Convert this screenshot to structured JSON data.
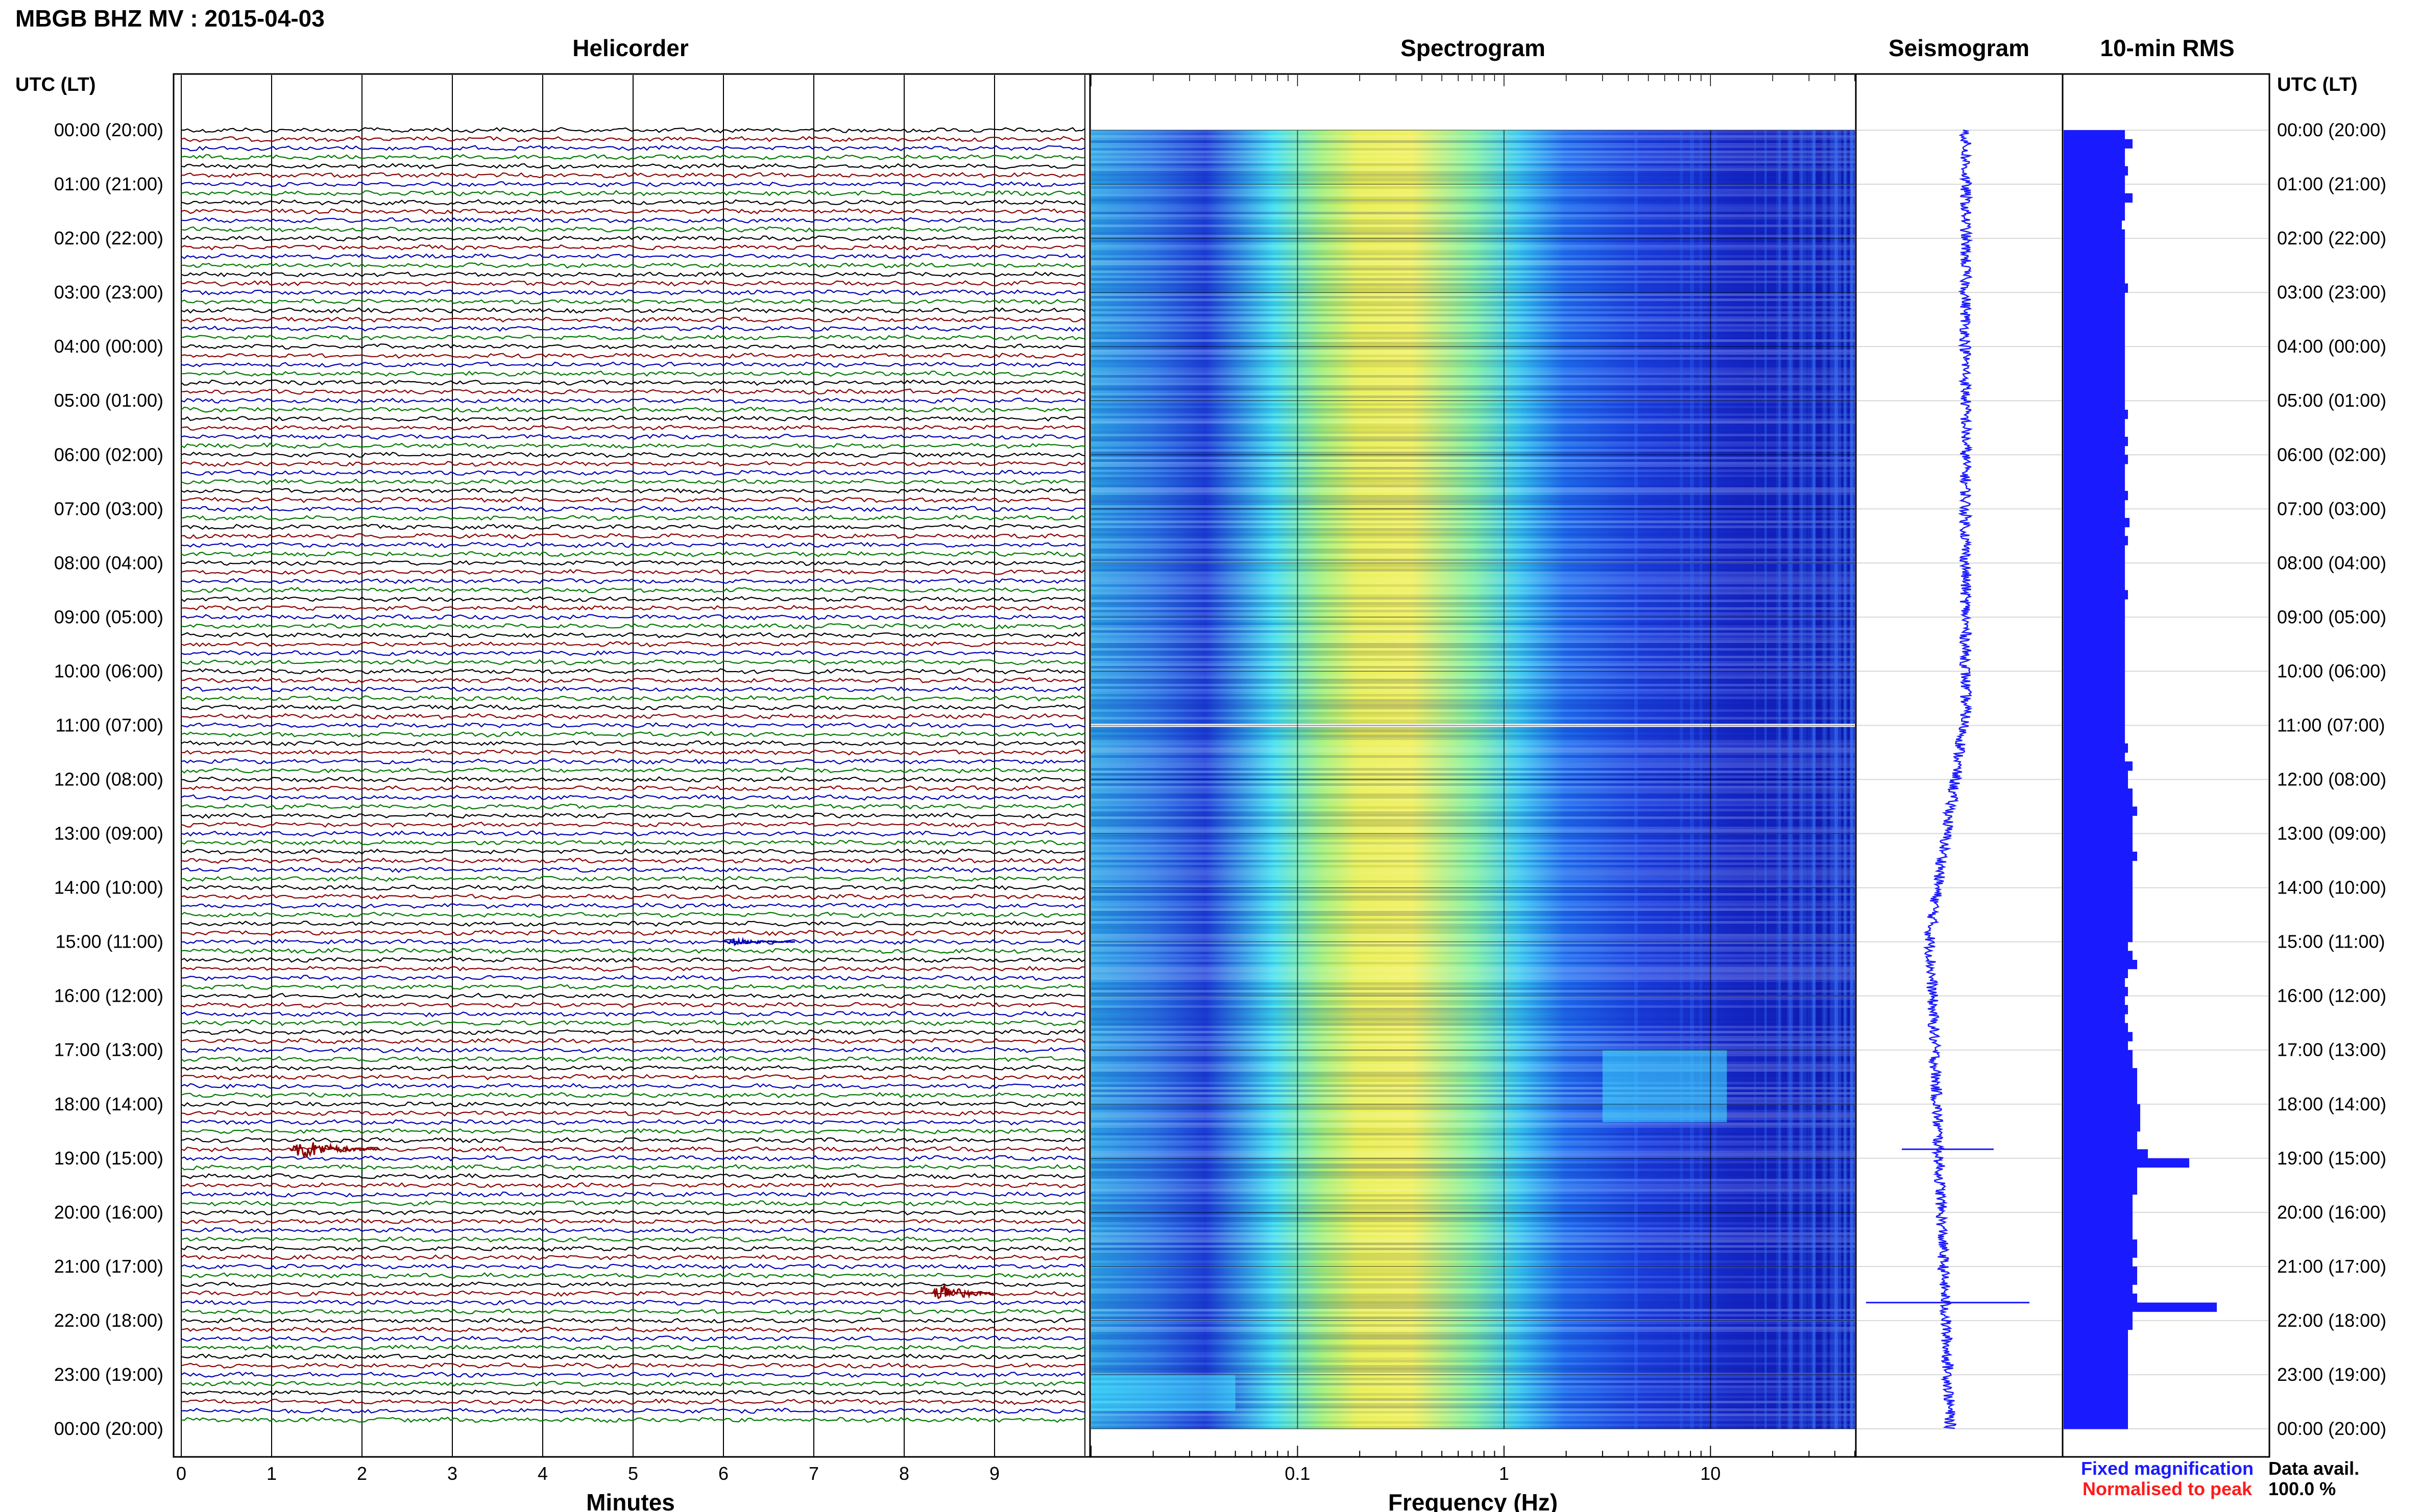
{
  "figure": {
    "title": "MBGB BHZ MV : 2015-04-03",
    "axis_label": "UTC (LT)",
    "time_labels": [
      "00:00 (20:00)",
      "01:00 (21:00)",
      "02:00 (22:00)",
      "03:00 (23:00)",
      "04:00 (00:00)",
      "05:00 (01:00)",
      "06:00 (02:00)",
      "07:00 (03:00)",
      "08:00 (04:00)",
      "09:00 (05:00)",
      "10:00 (06:00)",
      "11:00 (07:00)",
      "12:00 (08:00)",
      "13:00 (09:00)",
      "14:00 (10:00)",
      "15:00 (11:00)",
      "16:00 (12:00)",
      "17:00 (13:00)",
      "18:00 (14:00)",
      "19:00 (15:00)",
      "20:00 (16:00)",
      "21:00 (17:00)",
      "22:00 (18:00)",
      "23:00 (19:00)",
      "00:00 (20:00)"
    ],
    "footer": {
      "fixed_magnification": "Fixed magnification",
      "normalised_to_peak": "Normalised to peak",
      "data_avail_label": "Data avail.",
      "data_avail_value": "100.0 %"
    },
    "colors": {
      "fixed": "#1a1aff",
      "normalised": "#ff1a1a",
      "trace_cycle": [
        "#000000",
        "#8b0000",
        "#0000b4",
        "#007800"
      ]
    }
  },
  "chart_data": [
    {
      "type": "line",
      "panel": "Helicorder",
      "title": "Helicorder",
      "xlabel": "Minutes",
      "xlim": [
        0,
        10
      ],
      "xticks": [
        0,
        1,
        2,
        3,
        4,
        5,
        6,
        7,
        8,
        9
      ],
      "lines_per_hour": 6,
      "line_minutes": 10,
      "total_lines": 144,
      "trace_color_cycle": [
        "black",
        "darkred",
        "blue",
        "green"
      ],
      "events": [
        {
          "line_time": "18:50",
          "start_minute": 1.2,
          "end_minute": 2.2,
          "peak_amplitude_lines": 1.2
        },
        {
          "line_time": "21:30",
          "start_minute": 8.3,
          "end_minute": 9.0,
          "peak_amplitude_lines": 1.3
        },
        {
          "line_time": "15:00",
          "start_minute": 6.0,
          "end_minute": 6.8,
          "peak_amplitude_lines": 0.4
        }
      ]
    },
    {
      "type": "heatmap",
      "panel": "Spectrogram",
      "title": "Spectrogram",
      "xlabel": "Frequency (Hz)",
      "xscale": "log",
      "xlim": [
        0.01,
        50
      ],
      "xtick_labels": [
        "0.1",
        "1",
        "10"
      ],
      "peak_band_hz": [
        0.2,
        0.5
      ],
      "colormap": "jet",
      "features": [
        {
          "time_range": [
            "17:00",
            "18:20"
          ],
          "freq_hz": [
            3,
            12
          ],
          "description_level": "elevated"
        },
        {
          "time_range": [
            "23:00",
            "23:40"
          ],
          "freq_hz": [
            0.01,
            0.05
          ],
          "description_level": "elevated"
        }
      ],
      "gaps_utc": [
        "11:00"
      ]
    },
    {
      "type": "line",
      "panel": "Seismogram",
      "title": "Seismogram",
      "spikes_utc": [
        "18:50",
        "21:40"
      ]
    },
    {
      "type": "bar",
      "panel": "10-min RMS",
      "title": "10-min RMS",
      "interval_minutes": 10,
      "values_relative": [
        0.4,
        0.45,
        0.4,
        0.4,
        0.42,
        0.4,
        0.4,
        0.45,
        0.4,
        0.4,
        0.38,
        0.4,
        0.4,
        0.4,
        0.4,
        0.4,
        0.4,
        0.42,
        0.4,
        0.4,
        0.4,
        0.4,
        0.4,
        0.4,
        0.4,
        0.4,
        0.4,
        0.4,
        0.4,
        0.4,
        0.4,
        0.42,
        0.4,
        0.4,
        0.42,
        0.4,
        0.42,
        0.4,
        0.4,
        0.4,
        0.42,
        0.4,
        0.4,
        0.43,
        0.4,
        0.42,
        0.4,
        0.4,
        0.4,
        0.4,
        0.4,
        0.42,
        0.4,
        0.4,
        0.4,
        0.4,
        0.4,
        0.4,
        0.4,
        0.4,
        0.4,
        0.4,
        0.4,
        0.4,
        0.4,
        0.4,
        0.4,
        0.4,
        0.42,
        0.4,
        0.45,
        0.42,
        0.42,
        0.45,
        0.45,
        0.48,
        0.45,
        0.45,
        0.45,
        0.45,
        0.48,
        0.45,
        0.45,
        0.45,
        0.45,
        0.45,
        0.45,
        0.45,
        0.45,
        0.45,
        0.42,
        0.45,
        0.48,
        0.42,
        0.4,
        0.42,
        0.4,
        0.42,
        0.4,
        0.42,
        0.45,
        0.42,
        0.45,
        0.45,
        0.48,
        0.48,
        0.48,
        0.48,
        0.5,
        0.5,
        0.5,
        0.48,
        0.48,
        0.55,
        0.82,
        0.48,
        0.48,
        0.48,
        0.45,
        0.45,
        0.45,
        0.45,
        0.45,
        0.48,
        0.48,
        0.45,
        0.48,
        0.48,
        0.45,
        0.48,
        1.0,
        0.45,
        0.45,
        0.42,
        0.42,
        0.42,
        0.42,
        0.42,
        0.42,
        0.42,
        0.42,
        0.42,
        0.42,
        0.42
      ]
    }
  ]
}
